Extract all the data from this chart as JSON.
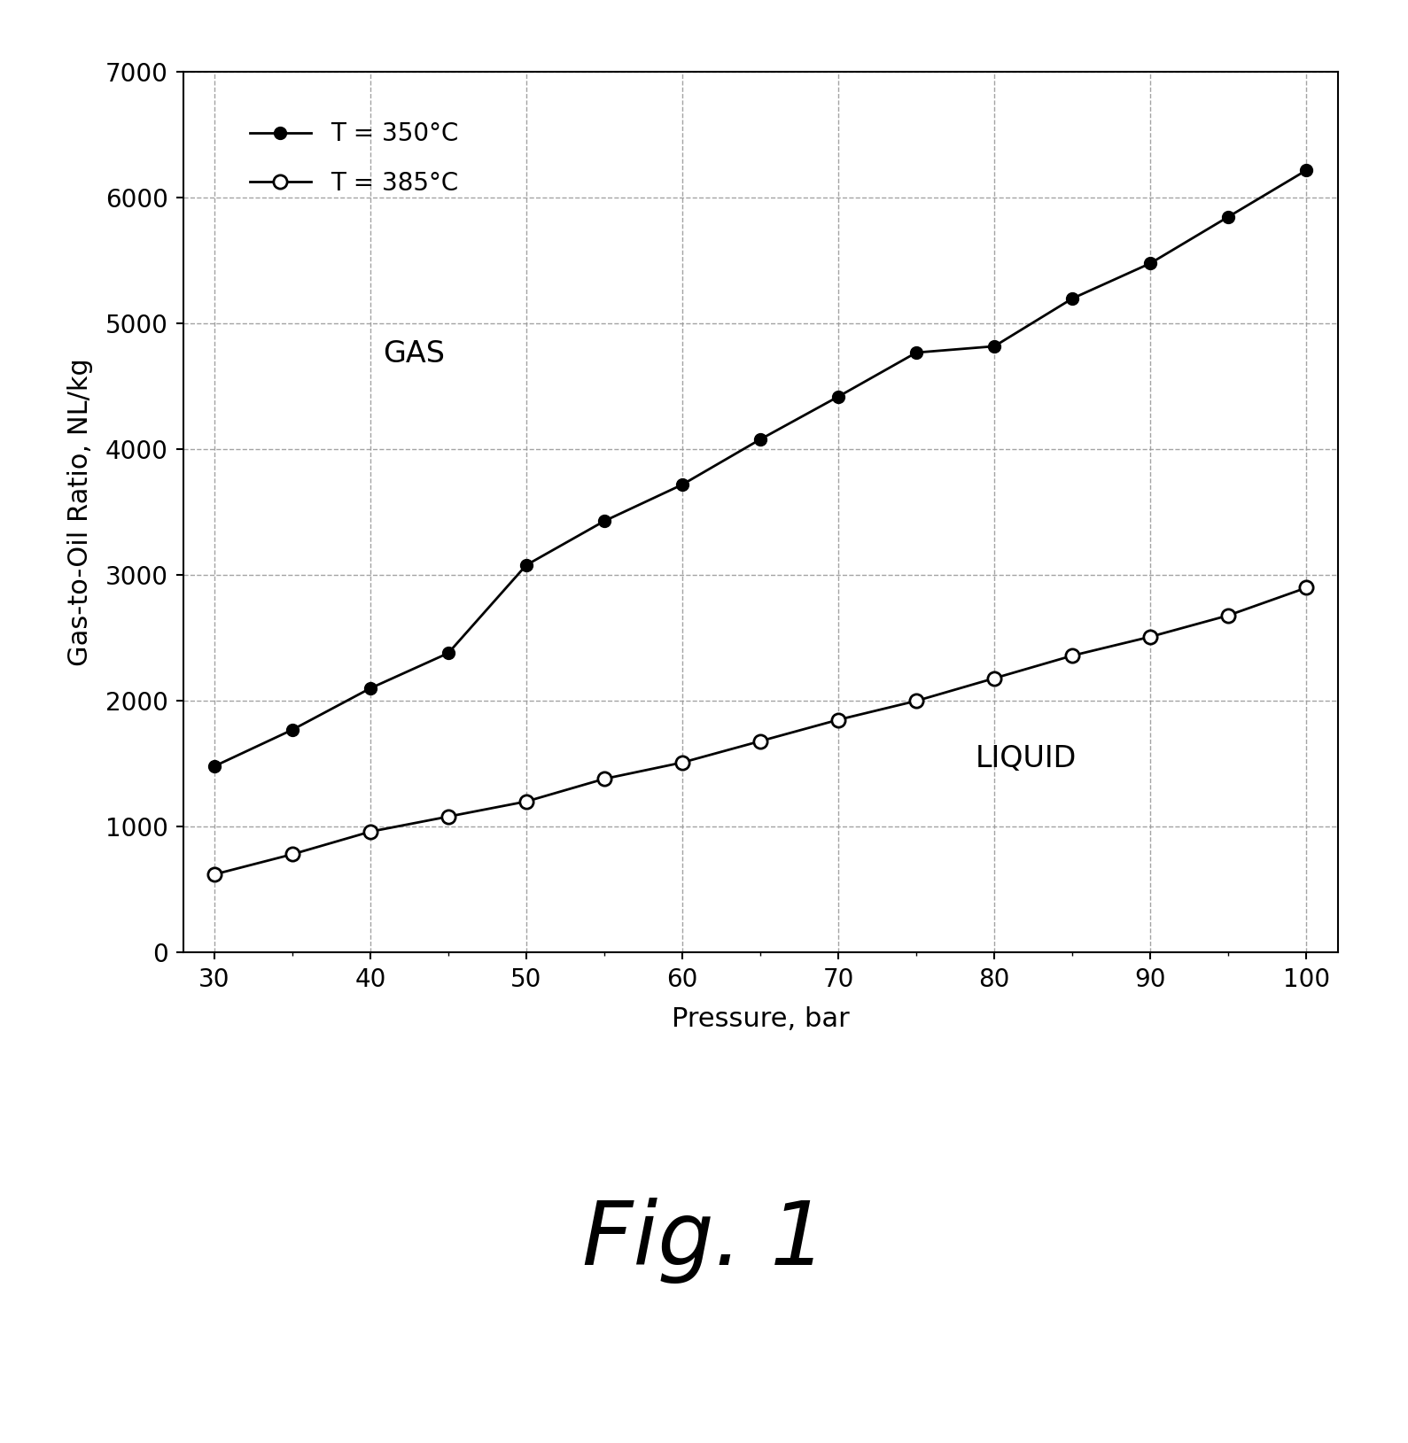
{
  "pressure": [
    30,
    35,
    40,
    45,
    50,
    55,
    60,
    65,
    70,
    75,
    80,
    85,
    90,
    95,
    100
  ],
  "series_350": [
    1480,
    1770,
    2100,
    2380,
    3080,
    3430,
    3720,
    4080,
    4420,
    4770,
    4820,
    5200,
    5480,
    5850,
    6220
  ],
  "series_385": [
    620,
    780,
    960,
    1080,
    1200,
    1380,
    1510,
    1680,
    1850,
    2000,
    2180,
    2360,
    2510,
    2680,
    2900
  ],
  "xlabel": "Pressure, bar",
  "ylabel": "Gas-to-Oil Ratio, NL/kg",
  "legend_350": "T = 350°C",
  "legend_385": "T = 385°C",
  "gas_label": "GAS",
  "liquid_label": "LIQUID",
  "fig_label": "Fig. 1",
  "xlim": [
    28,
    102
  ],
  "ylim": [
    0,
    7000
  ],
  "xticks": [
    30,
    40,
    50,
    60,
    70,
    80,
    90,
    100
  ],
  "yticks": [
    0,
    1000,
    2000,
    3000,
    4000,
    5000,
    6000,
    7000
  ],
  "line_color": "#000000",
  "bg_color": "#ffffff",
  "grid_color": "#999999",
  "axis_label_fontsize": 22,
  "tick_fontsize": 20,
  "legend_fontsize": 20,
  "annotation_fontsize": 24,
  "fig1_fontsize": 72
}
